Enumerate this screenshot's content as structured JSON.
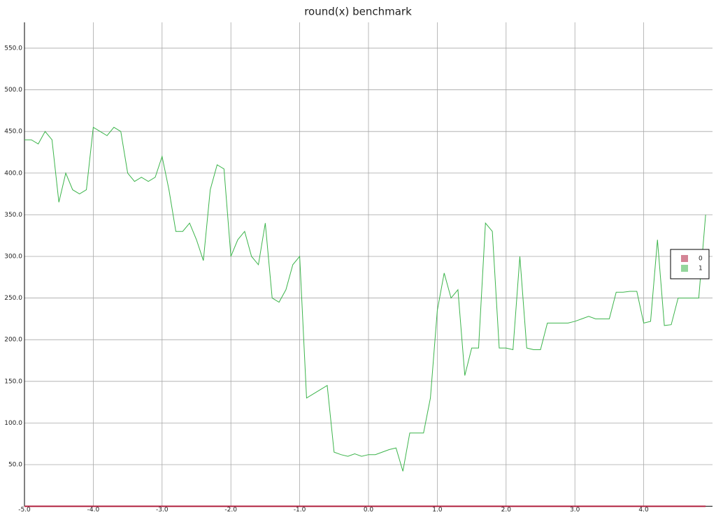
{
  "chart_data": {
    "type": "line",
    "title": "round(x) benchmark",
    "x": [
      -5.0,
      -4.9,
      -4.8,
      -4.7,
      -4.6,
      -4.5,
      -4.4,
      -4.3,
      -4.2,
      -4.1,
      -4.0,
      -3.9,
      -3.8,
      -3.7,
      -3.6,
      -3.5,
      -3.4,
      -3.3,
      -3.2,
      -3.1,
      -3.0,
      -2.9,
      -2.8,
      -2.7,
      -2.6,
      -2.5,
      -2.4,
      -2.3,
      -2.2,
      -2.1,
      -2.0,
      -1.9,
      -1.8,
      -1.7,
      -1.6,
      -1.5,
      -1.4,
      -1.3,
      -1.2,
      -1.1,
      -1.0,
      -0.9,
      -0.8,
      -0.7,
      -0.6,
      -0.5,
      -0.4,
      -0.3,
      -0.2,
      -0.1,
      0.0,
      0.1,
      0.2,
      0.3,
      0.4,
      0.5,
      0.6,
      0.7,
      0.8,
      0.9,
      1.0,
      1.1,
      1.2,
      1.3,
      1.4,
      1.5,
      1.6,
      1.7,
      1.8,
      1.9,
      2.0,
      2.1,
      2.2,
      2.3,
      2.4,
      2.5,
      2.6,
      2.7,
      2.8,
      2.9,
      3.0,
      3.1,
      3.2,
      3.3,
      3.4,
      3.5,
      3.6,
      3.7,
      3.8,
      3.9,
      4.0,
      4.1,
      4.2,
      4.3,
      4.4,
      4.5,
      4.6,
      4.7,
      4.8,
      4.9
    ],
    "series": [
      {
        "name": "0",
        "color": "#b0203f",
        "values": [
          0,
          0,
          0,
          0,
          0,
          0,
          0,
          0,
          0,
          0,
          0,
          0,
          0,
          0,
          0,
          0,
          0,
          0,
          0,
          0,
          0,
          0,
          0,
          0,
          0,
          0,
          0,
          0,
          0,
          0,
          0,
          0,
          0,
          0,
          0,
          0,
          0,
          0,
          0,
          0,
          0,
          0,
          0,
          0,
          0,
          0,
          0,
          0,
          0,
          0,
          0,
          0,
          0,
          0,
          0,
          0,
          0,
          0,
          0,
          0,
          0,
          0,
          0,
          0,
          0,
          0,
          0,
          0,
          0,
          0,
          0,
          0,
          0,
          0,
          0,
          0,
          0,
          0,
          0,
          0,
          0,
          0,
          0,
          0,
          0,
          0,
          0,
          0,
          0,
          0,
          0,
          0,
          0,
          0,
          0,
          0,
          0,
          0,
          0,
          0
        ]
      },
      {
        "name": "1",
        "color": "#3cb44b",
        "values": [
          440,
          440,
          435,
          450,
          440,
          365,
          400,
          380,
          375,
          380,
          455,
          450,
          445,
          455,
          450,
          400,
          390,
          395,
          390,
          395,
          420,
          380,
          330,
          330,
          340,
          320,
          295,
          380,
          410,
          405,
          300,
          320,
          330,
          300,
          290,
          340,
          250,
          245,
          260,
          290,
          300,
          130,
          135,
          140,
          145,
          65,
          62,
          60,
          63,
          60,
          62,
          62,
          65,
          68,
          70,
          42,
          88,
          88,
          88,
          130,
          235,
          280,
          250,
          260,
          157,
          190,
          190,
          340,
          330,
          190,
          190,
          188,
          300,
          190,
          188,
          188,
          220,
          220,
          220,
          220,
          222,
          225,
          228,
          225,
          225,
          225,
          257,
          257,
          258,
          258,
          220,
          222,
          320,
          217,
          218,
          250,
          250,
          250,
          250,
          350
        ]
      }
    ],
    "xlim": [
      -5.0,
      5.0
    ],
    "ylim": [
      0,
      581
    ],
    "xticks": [
      {
        "value": -5,
        "label": "-5.0"
      },
      {
        "value": -4,
        "label": "-4.0"
      },
      {
        "value": -3,
        "label": "-3.0"
      },
      {
        "value": -2,
        "label": "-2.0"
      },
      {
        "value": -1,
        "label": "-1.0"
      },
      {
        "value": 0,
        "label": "0.0"
      },
      {
        "value": 1,
        "label": "1.0"
      },
      {
        "value": 2,
        "label": "2.0"
      },
      {
        "value": 3,
        "label": "3.0"
      },
      {
        "value": 4,
        "label": "4.0"
      }
    ],
    "yticks": [
      {
        "value": 50,
        "label": "50.0"
      },
      {
        "value": 100,
        "label": "100.0"
      },
      {
        "value": 150,
        "label": "150.0"
      },
      {
        "value": 200,
        "label": "200.0"
      },
      {
        "value": 250,
        "label": "250.0"
      },
      {
        "value": 300,
        "label": "300.0"
      },
      {
        "value": 350,
        "label": "350.0"
      },
      {
        "value": 400,
        "label": "400.0"
      },
      {
        "value": 450,
        "label": "450.0"
      },
      {
        "value": 500,
        "label": "500.0"
      },
      {
        "value": 550,
        "label": "550.0"
      }
    ],
    "grid": true,
    "legend": "right"
  }
}
